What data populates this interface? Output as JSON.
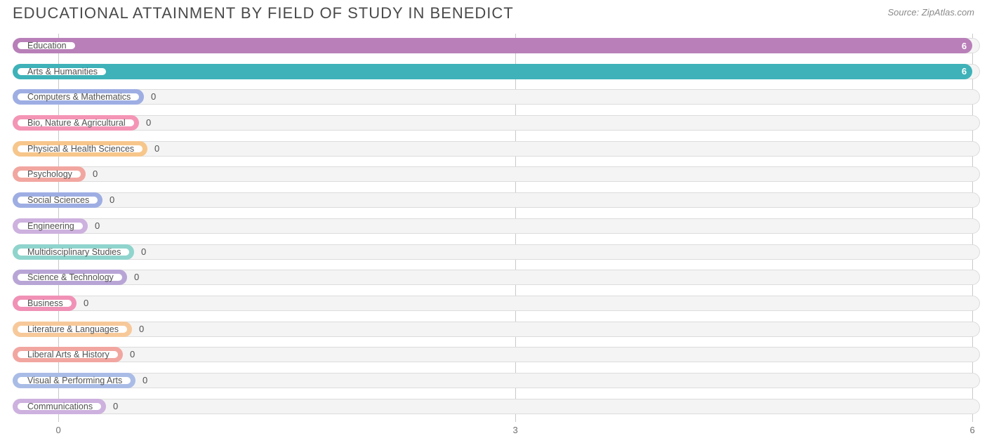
{
  "title": "EDUCATIONAL ATTAINMENT BY FIELD OF STUDY IN BENEDICT",
  "source": "Source: ZipAtlas.com",
  "chart": {
    "type": "bar-horizontal",
    "x_min": -0.3,
    "x_max": 6.05,
    "x_ticks": [
      0,
      3,
      6
    ],
    "track_bg": "#f4f4f4",
    "track_border": "#dcdcdc",
    "grid_color": "#c9c9c9",
    "label_origin_x": -0.3,
    "zero_pill_right_x": 0.0,
    "bars": [
      {
        "label": "Education",
        "value": 6,
        "color": "#b87fb8",
        "value_inside": true
      },
      {
        "label": "Arts & Humanities",
        "value": 6,
        "color": "#3eb2b8",
        "value_inside": true
      },
      {
        "label": "Computers & Mathematics",
        "value": 0,
        "color": "#9eaee3",
        "value_inside": false
      },
      {
        "label": "Bio, Nature & Agricultural",
        "value": 0,
        "color": "#f495b6",
        "value_inside": false
      },
      {
        "label": "Physical & Health Sciences",
        "value": 0,
        "color": "#f7c68b",
        "value_inside": false
      },
      {
        "label": "Psychology",
        "value": 0,
        "color": "#f2a6a0",
        "value_inside": false
      },
      {
        "label": "Social Sciences",
        "value": 0,
        "color": "#9eaee3",
        "value_inside": false
      },
      {
        "label": "Engineering",
        "value": 0,
        "color": "#cdb1de",
        "value_inside": false
      },
      {
        "label": "Multidisciplinary Studies",
        "value": 0,
        "color": "#8fd4cd",
        "value_inside": false
      },
      {
        "label": "Science & Technology",
        "value": 0,
        "color": "#b8a5d6",
        "value_inside": false
      },
      {
        "label": "Business",
        "value": 0,
        "color": "#f191b6",
        "value_inside": false
      },
      {
        "label": "Literature & Languages",
        "value": 0,
        "color": "#f7c99a",
        "value_inside": false
      },
      {
        "label": "Liberal Arts & History",
        "value": 0,
        "color": "#f2a6a0",
        "value_inside": false
      },
      {
        "label": "Visual & Performing Arts",
        "value": 0,
        "color": "#a9bce6",
        "value_inside": false
      },
      {
        "label": "Communications",
        "value": 0,
        "color": "#cdb1de",
        "value_inside": false
      }
    ]
  }
}
